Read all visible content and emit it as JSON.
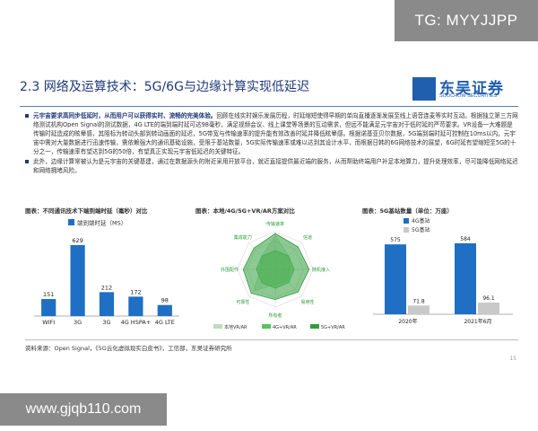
{
  "watermark_top": "TG: MYYJJPP",
  "watermark_bottom": "www.gjqb110.com",
  "title": "2.3 网络及运算技术：5G/6G与边缘计算实现低延迟",
  "logo": {
    "name": "东吴证券",
    "en": "SOOCHOW SECURITIES",
    "color": "#1f5fae"
  },
  "bullets": [
    {
      "bold": "元宇宙要求高同步低延时，从而用户可以获得实时、流畅的完美体验。",
      "text": "回顾在线实时娱乐发展历程，时延缩短使得早期的单向直播逐渐发展至线上语音连麦等实时互动。根据独立第三方网络测试机构Open Signal的测试数据，4G LTE的端到端时延可达98毫秒，满足视频会议、线上课堂等场景的互动需求，但远不能满足元宇宙对于低时延的严苛要求。VR设备一大难题是传输时延造成的眩晕感，其阻标为转动头部到转动画面的延迟，5G带宽与传输速率的提升能有效改善时延并降低眩晕感。根据诺基亚贝尔数据，5G端到端时延可控制在10ms以内。元宇宙中需对大量数据进行迅速传输，需依赖强大的通讯基础设施，受限于基站数量，5G实际传输速率或难以达到其设计水平，而根据日韩的6G网络技术的展望，6G时延有望缩短至5G的十分之一，传输速率有望达到5G的50倍，有望真正实现元宇宙低延迟的关键特征。"
    },
    {
      "bold": "",
      "text": "此外，边缘计算常被认为是元宇宙的关键基建，通过在数据源头的附近采用开放平台，就近直接提供最近端的服务，从而帮助终端用户补足本地算力，提升处理效率，尽可能降低网络延迟和网络拥堵风险。"
    }
  ],
  "fig1": {
    "caption": "图表：不同通讯技术下端到端时延（毫秒）对比",
    "chart_data": {
      "type": "bar",
      "categories": [
        "WIFI",
        "3G",
        "3G",
        "4G HSPA+",
        "4G LTE"
      ],
      "series": [
        {
          "name": "端到端时延（MS）",
          "values": [
            151,
            629,
            212,
            172,
            98
          ]
        }
      ],
      "ylim": [
        0,
        700
      ],
      "colors": [
        "#1f6fc4",
        "#1f6fc4"
      ]
    }
  },
  "fig2": {
    "caption": "图表：本地/4G/5G+VR/AR方案对比",
    "chart_data": {
      "type": "radar",
      "axes": [
        "传输速率",
        "信道",
        "随机接入",
        "易用性",
        "所有者",
        "可靠性",
        "外围配件",
        "集成能力"
      ],
      "series": [
        {
          "name": "本地VR/AR",
          "color": "#b9dfb9",
          "values": [
            0.9,
            0.5,
            0.4,
            0.45,
            0.4,
            0.8,
            0.4,
            0.5
          ]
        },
        {
          "name": "4G+VR/AR",
          "color": "#5cc15c",
          "values": [
            0.5,
            0.5,
            0.5,
            0.5,
            0.5,
            0.5,
            0.5,
            0.5
          ]
        },
        {
          "name": "5G+VR/AR",
          "color": "#2e9c3a",
          "values": [
            0.95,
            0.85,
            0.9,
            0.85,
            0.8,
            0.9,
            0.85,
            0.8
          ]
        }
      ]
    }
  },
  "fig3": {
    "caption": "图表：5G基站数量（单位：万座）",
    "chart_data": {
      "type": "bar",
      "categories": [
        "2020年",
        "2021年6月"
      ],
      "series": [
        {
          "name": "4G基站",
          "color": "#1f6fc4",
          "values": [
            575,
            584
          ]
        },
        {
          "name": "5G基站",
          "color": "#c9c9c9",
          "values": [
            71.8,
            96.1
          ]
        }
      ],
      "ylim": [
        0,
        650
      ]
    }
  },
  "source": "资料来源：Open Signal，《5G云化虚拟现实白皮书》，工信部，东吴证券研究所",
  "page_number": "15"
}
